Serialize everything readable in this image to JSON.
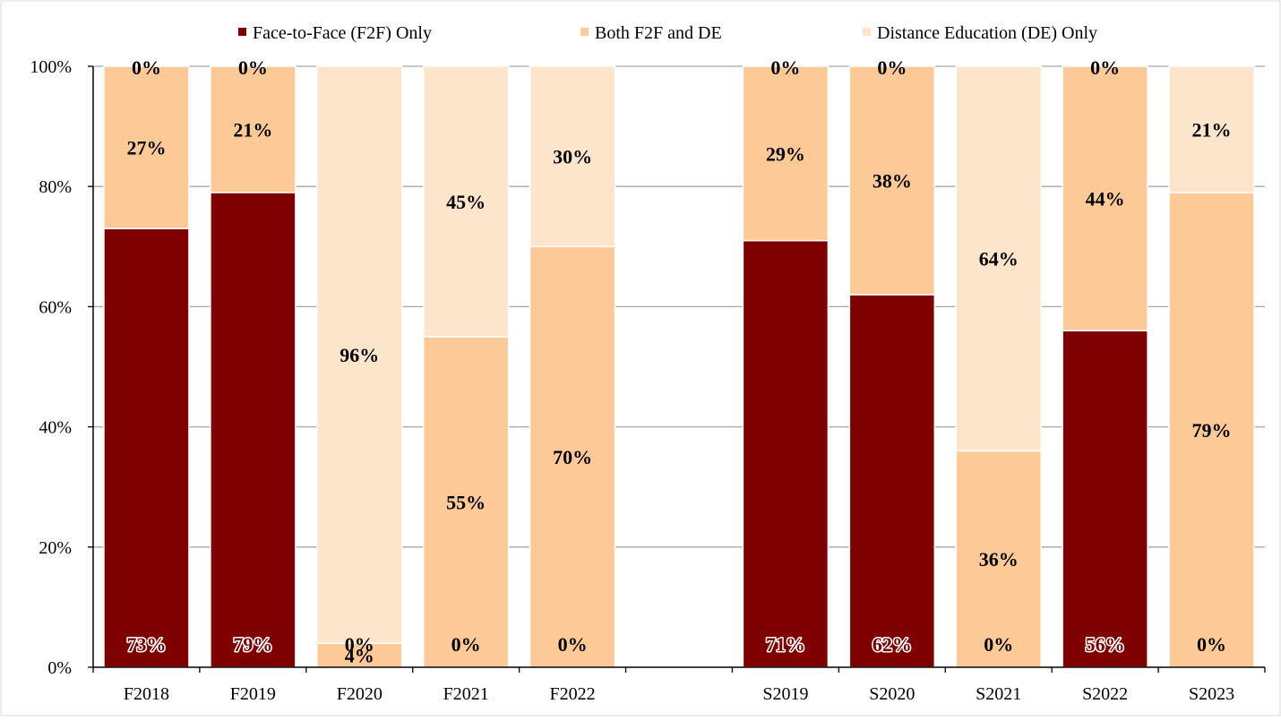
{
  "chart_data": {
    "type": "bar",
    "stacked": true,
    "categories": [
      "F2018",
      "F2019",
      "F2020",
      "F2021",
      "F2022",
      "",
      "S2019",
      "S2020",
      "S2021",
      "S2022",
      "S2023"
    ],
    "series": [
      {
        "name": "Face-to-Face (F2F) Only",
        "color": "#7f0000",
        "values": [
          73,
          79,
          0,
          0,
          0,
          null,
          71,
          62,
          0,
          56,
          0
        ],
        "labels": [
          "73%",
          "79%",
          "0%",
          "0%",
          "0%",
          "",
          "71%",
          "62%",
          "0%",
          "56%",
          "0%"
        ]
      },
      {
        "name": "Both F2F and DE",
        "color": "#fdc997",
        "values": [
          27,
          21,
          4,
          55,
          70,
          null,
          29,
          38,
          36,
          44,
          79
        ],
        "labels": [
          "27%",
          "21%",
          "4%",
          "55%",
          "70%",
          "",
          "29%",
          "38%",
          "36%",
          "44%",
          "79%"
        ]
      },
      {
        "name": "Distance Education (DE) Only",
        "color": "#fde5cc",
        "values": [
          0,
          0,
          96,
          45,
          30,
          null,
          0,
          0,
          64,
          0,
          21
        ],
        "labels": [
          "0%",
          "0%",
          "96%",
          "45%",
          "30%",
          "",
          "0%",
          "0%",
          "64%",
          "0%",
          "21%"
        ]
      }
    ],
    "yticks": [
      "0%",
      "20%",
      "40%",
      "60%",
      "80%",
      "100%"
    ],
    "ylim": [
      0,
      100
    ],
    "grid": true,
    "legend_position": "top"
  }
}
